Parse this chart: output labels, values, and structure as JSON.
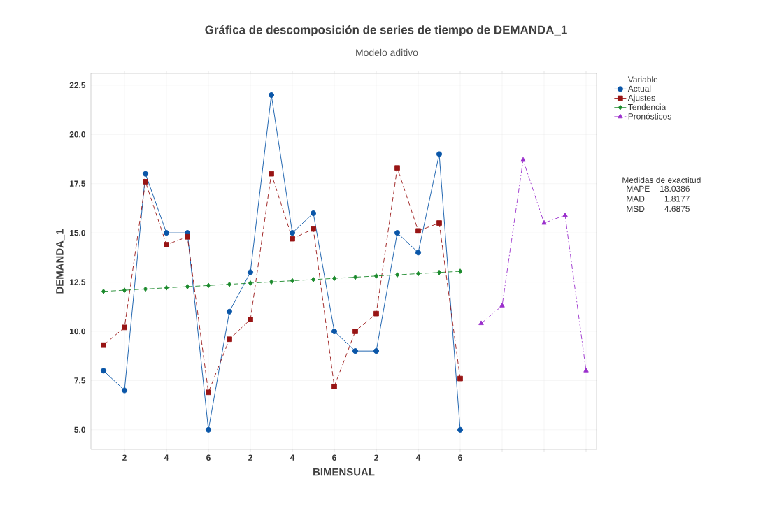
{
  "chart_data": {
    "type": "line",
    "title": "Gráfica de descomposición de series de tiempo de DEMANDA_1",
    "subtitle": "Modelo aditivo",
    "xlabel": "BIMENSUAL",
    "ylabel": "DEMANDA_1",
    "legend_title": "Variable",
    "categories": [
      null,
      "2",
      null,
      "4",
      null,
      "6",
      null,
      "2",
      null,
      "4",
      null,
      "6",
      null,
      "2",
      null,
      "4",
      null,
      "6",
      null,
      null,
      null,
      null,
      null,
      null
    ],
    "series": [
      {
        "name": "Actual",
        "color": "#0a56a8",
        "marker": "circle",
        "line_style": "solid",
        "values": [
          8,
          7,
          18,
          15,
          15,
          5,
          11,
          13,
          22,
          15,
          16,
          10,
          9,
          9,
          15,
          14,
          19,
          5,
          null,
          null,
          null,
          null,
          null,
          null
        ]
      },
      {
        "name": "Ajustes",
        "color": "#981414",
        "marker": "square",
        "line_style": "dashed",
        "values": [
          9.3,
          10.2,
          17.6,
          14.4,
          14.8,
          6.9,
          9.6,
          10.6,
          18.0,
          14.7,
          15.2,
          7.2,
          10.0,
          10.9,
          18.3,
          15.1,
          15.5,
          7.6,
          null,
          null,
          null,
          null,
          null,
          null
        ]
      },
      {
        "name": "Tendencia",
        "color": "#1b8a2c",
        "marker": "diamond",
        "line_style": "dashed",
        "values": [
          12.03,
          12.09,
          12.15,
          12.21,
          12.27,
          12.33,
          12.39,
          12.45,
          12.51,
          12.57,
          12.63,
          12.69,
          12.75,
          12.81,
          12.87,
          12.93,
          12.99,
          13.05,
          null,
          null,
          null,
          null,
          null,
          null
        ]
      },
      {
        "name": "Pronósticos",
        "color": "#9a2fcc",
        "marker": "triangle",
        "line_style": "dashdot",
        "values": [
          null,
          null,
          null,
          null,
          null,
          null,
          null,
          null,
          null,
          null,
          null,
          null,
          null,
          null,
          null,
          null,
          null,
          null,
          10.4,
          11.3,
          18.7,
          15.5,
          15.9,
          8.0
        ]
      }
    ],
    "ylim": [
      4.0,
      23.1
    ],
    "yticks": [
      {
        "value": 5,
        "label": "5.0"
      },
      {
        "value": 7.5,
        "label": "7.5"
      },
      {
        "value": 10,
        "label": "10.0"
      },
      {
        "value": 12.5,
        "label": "12.5"
      },
      {
        "value": 15,
        "label": "15.0"
      },
      {
        "value": 17.5,
        "label": "17.5"
      },
      {
        "value": 20,
        "label": "20.0"
      },
      {
        "value": 22.5,
        "label": "22.5"
      }
    ],
    "grid": true,
    "legend": "top right",
    "annotations": [
      "Medidas de exactitud",
      "MAPE",
      "18.0386",
      "MAD",
      "1.8177",
      "MSD",
      "4.6875"
    ]
  }
}
